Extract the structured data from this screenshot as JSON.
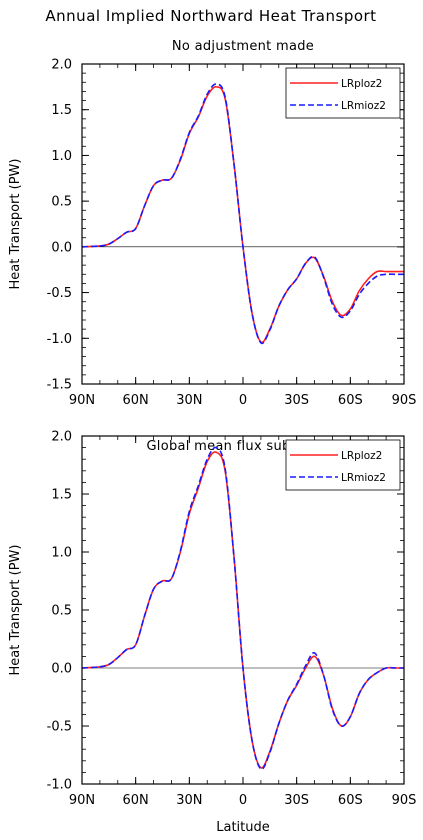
{
  "figure": {
    "title": "Annual Implied Northward Heat Transport"
  },
  "chart_data": [
    {
      "type": "line",
      "title": "No adjustment made",
      "xlabel": "",
      "ylabel": "Heat Transport (PW)",
      "xlim": [
        90,
        -90
      ],
      "ylim": [
        -1.5,
        2.0
      ],
      "xticks": [
        90,
        60,
        30,
        0,
        -30,
        -60,
        -90
      ],
      "xtick_labels": [
        "90N",
        "60N",
        "30N",
        "0",
        "30S",
        "60S",
        "90S"
      ],
      "yticks": [
        -1.5,
        -1.0,
        -0.5,
        0.0,
        0.5,
        1.0,
        1.5,
        2.0
      ],
      "ytick_labels": [
        "-1.5",
        "-1.0",
        "-0.5",
        "0.0",
        "0.5",
        "1.0",
        "1.5",
        "2.0"
      ],
      "grid": false,
      "zero_line": true,
      "legend_position": "top-right",
      "series": [
        {
          "name": "LRploz2",
          "color": "#ff2020",
          "dash": "solid",
          "x": [
            90,
            80,
            75,
            70,
            65,
            60,
            55,
            50,
            45,
            40,
            35,
            30,
            25,
            20,
            15,
            10,
            5,
            0,
            -5,
            -10,
            -15,
            -20,
            -25,
            -30,
            -35,
            -40,
            -45,
            -50,
            -55,
            -60,
            -65,
            -70,
            -75,
            -80,
            -85,
            -90
          ],
          "y": [
            0.0,
            0.01,
            0.03,
            0.09,
            0.16,
            0.2,
            0.45,
            0.67,
            0.73,
            0.75,
            0.95,
            1.24,
            1.42,
            1.65,
            1.75,
            1.62,
            0.9,
            0.0,
            -0.72,
            -1.04,
            -0.9,
            -0.65,
            -0.47,
            -0.35,
            -0.18,
            -0.12,
            -0.32,
            -0.6,
            -0.75,
            -0.68,
            -0.48,
            -0.35,
            -0.27,
            -0.27,
            -0.27,
            -0.27
          ]
        },
        {
          "name": "LRmioz2",
          "color": "#1a1aff",
          "dash": "dashed",
          "x": [
            90,
            80,
            75,
            70,
            65,
            60,
            55,
            50,
            45,
            40,
            35,
            30,
            25,
            20,
            15,
            10,
            5,
            0,
            -5,
            -10,
            -15,
            -20,
            -25,
            -30,
            -35,
            -40,
            -45,
            -50,
            -55,
            -60,
            -65,
            -70,
            -75,
            -80,
            -85,
            -90
          ],
          "y": [
            0.0,
            0.01,
            0.03,
            0.09,
            0.16,
            0.2,
            0.45,
            0.67,
            0.73,
            0.75,
            0.96,
            1.25,
            1.43,
            1.67,
            1.78,
            1.64,
            0.9,
            0.0,
            -0.72,
            -1.05,
            -0.91,
            -0.65,
            -0.47,
            -0.35,
            -0.18,
            -0.11,
            -0.33,
            -0.63,
            -0.77,
            -0.7,
            -0.52,
            -0.4,
            -0.32,
            -0.3,
            -0.3,
            -0.3
          ]
        }
      ]
    },
    {
      "type": "line",
      "title": "Global mean flux subtracted",
      "xlabel": "Latitude",
      "ylabel": "Heat Transport (PW)",
      "xlim": [
        90,
        -90
      ],
      "ylim": [
        -1.0,
        2.0
      ],
      "xticks": [
        90,
        60,
        30,
        0,
        -30,
        -60,
        -90
      ],
      "xtick_labels": [
        "90N",
        "60N",
        "30N",
        "0",
        "30S",
        "60S",
        "90S"
      ],
      "yticks": [
        -1.0,
        -0.5,
        0.0,
        0.5,
        1.0,
        1.5,
        2.0
      ],
      "ytick_labels": [
        "-1.0",
        "-0.5",
        "0.0",
        "0.5",
        "1.0",
        "1.5",
        "2.0"
      ],
      "grid": false,
      "zero_line": true,
      "legend_position": "top-right",
      "series": [
        {
          "name": "LRploz2",
          "color": "#ff2020",
          "dash": "solid",
          "x": [
            90,
            80,
            75,
            70,
            65,
            60,
            55,
            50,
            45,
            40,
            35,
            30,
            25,
            20,
            15,
            10,
            5,
            0,
            -5,
            -10,
            -15,
            -20,
            -25,
            -30,
            -35,
            -40,
            -45,
            -50,
            -55,
            -60,
            -65,
            -70,
            -75,
            -80,
            -85,
            -90
          ],
          "y": [
            0.0,
            0.01,
            0.03,
            0.09,
            0.16,
            0.2,
            0.45,
            0.68,
            0.75,
            0.77,
            1.0,
            1.33,
            1.55,
            1.78,
            1.86,
            1.7,
            0.95,
            0.0,
            -0.62,
            -0.86,
            -0.72,
            -0.48,
            -0.28,
            -0.15,
            0.0,
            0.1,
            -0.06,
            -0.35,
            -0.5,
            -0.42,
            -0.22,
            -0.1,
            -0.04,
            0.0,
            0.0,
            0.0
          ]
        },
        {
          "name": "LRmioz2",
          "color": "#1a1aff",
          "dash": "dashed",
          "x": [
            90,
            80,
            75,
            70,
            65,
            60,
            55,
            50,
            45,
            40,
            35,
            30,
            25,
            20,
            15,
            10,
            5,
            0,
            -5,
            -10,
            -15,
            -20,
            -25,
            -30,
            -35,
            -40,
            -45,
            -50,
            -55,
            -60,
            -65,
            -70,
            -75,
            -80,
            -85,
            -90
          ],
          "y": [
            0.0,
            0.01,
            0.03,
            0.09,
            0.16,
            0.2,
            0.45,
            0.68,
            0.75,
            0.77,
            1.01,
            1.35,
            1.57,
            1.8,
            1.9,
            1.72,
            0.95,
            0.0,
            -0.62,
            -0.87,
            -0.73,
            -0.48,
            -0.28,
            -0.14,
            0.02,
            0.13,
            -0.06,
            -0.36,
            -0.5,
            -0.42,
            -0.22,
            -0.1,
            -0.04,
            0.0,
            0.0,
            0.0
          ]
        }
      ]
    }
  ]
}
